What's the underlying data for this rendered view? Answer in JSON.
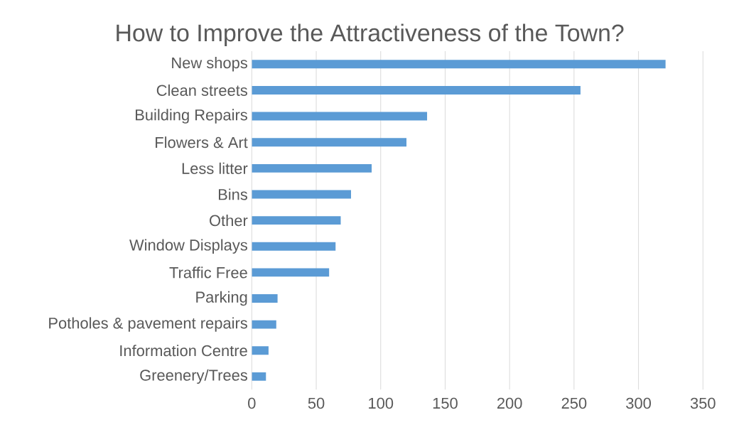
{
  "chart_data": {
    "type": "bar",
    "orientation": "horizontal",
    "title": "How to Improve the Attractiveness of the Town?",
    "categories": [
      "New shops",
      "Clean streets",
      "Building Repairs",
      "Flowers & Art",
      "Less litter",
      "Bins",
      "Other",
      "Window Displays",
      "Traffic Free",
      "Parking",
      "Potholes & pavement repairs",
      "Information Centre",
      "Greenery/Trees"
    ],
    "values": [
      321,
      255,
      136,
      120,
      93,
      77,
      69,
      65,
      60,
      20,
      19,
      13,
      11
    ],
    "color": "#5b9bd5",
    "xlim": [
      0,
      350
    ],
    "xticks": [
      0,
      50,
      100,
      150,
      200,
      250,
      300,
      350
    ],
    "grid": "x"
  }
}
